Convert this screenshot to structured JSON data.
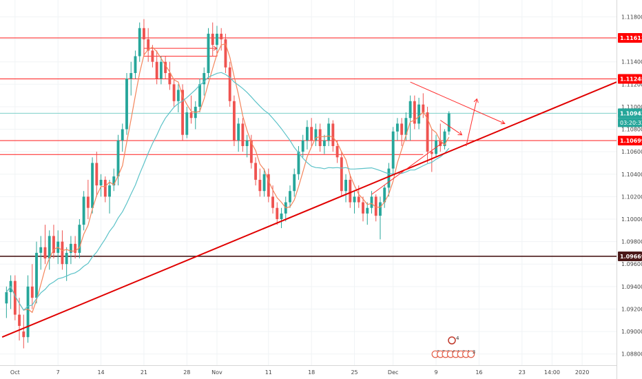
{
  "chart_data": {
    "type": "candlestick",
    "ylim": [
      1.087,
      1.1195
    ],
    "y_ticks": [
      1.118,
      1.116,
      1.114,
      1.112,
      1.11,
      1.108,
      1.106,
      1.104,
      1.102,
      1.1,
      1.098,
      1.096,
      1.094,
      1.092,
      1.09,
      1.088
    ],
    "y_tick_labels": [
      "1.11800",
      "1.11600",
      "1.11400",
      "1.11200",
      "1.11000",
      "1.10800",
      "1.10600",
      "1.10400",
      "1.10200",
      "1.10000",
      "1.09800",
      "1.09600",
      "1.09400",
      "1.09200",
      "1.09000",
      "1.08800"
    ],
    "x_ticks": [
      {
        "label": "Oct",
        "bar": 2
      },
      {
        "label": "7",
        "bar": 12
      },
      {
        "label": "14",
        "bar": 22
      },
      {
        "label": "21",
        "bar": 32
      },
      {
        "label": "28",
        "bar": 42
      },
      {
        "label": "Nov",
        "bar": 49
      },
      {
        "label": "11",
        "bar": 61
      },
      {
        "label": "18",
        "bar": 71
      },
      {
        "label": "25",
        "bar": 81
      },
      {
        "label": "Dec",
        "bar": 90
      },
      {
        "label": "9",
        "bar": 100
      },
      {
        "label": "16",
        "bar": 110
      },
      {
        "label": "23",
        "bar": 120
      },
      {
        "label": "14:00",
        "bar": 127
      },
      {
        "label": "2020",
        "bar": 134
      }
    ],
    "x_range": [
      -1.5,
      142
    ],
    "grid": true,
    "candles": [
      [
        1.0925,
        1.094,
        1.0912,
        1.0935
      ],
      [
        1.0935,
        1.095,
        1.092,
        1.0945
      ],
      [
        1.0945,
        1.095,
        1.091,
        1.0915
      ],
      [
        1.0915,
        1.093,
        1.0892,
        1.0905
      ],
      [
        1.09,
        1.0915,
        1.0885,
        1.0895
      ],
      [
        1.0895,
        1.095,
        1.089,
        1.094
      ],
      [
        1.094,
        1.096,
        1.092,
        1.093
      ],
      [
        1.093,
        1.098,
        1.0925,
        1.097
      ],
      [
        1.097,
        1.0985,
        1.0955,
        1.0975
      ],
      [
        1.0975,
        1.0995,
        1.096,
        1.0965
      ],
      [
        1.0965,
        1.099,
        1.0955,
        1.0985
      ],
      [
        1.0985,
        1.0995,
        1.0965,
        1.097
      ],
      [
        1.097,
        1.099,
        1.096,
        1.098
      ],
      [
        1.098,
        1.099,
        1.0955,
        1.096
      ],
      [
        1.096,
        1.0975,
        1.0945,
        1.097
      ],
      [
        1.097,
        1.0985,
        1.096,
        1.0978
      ],
      [
        1.0978,
        1.0985,
        1.0965,
        1.097
      ],
      [
        1.097,
        1.1,
        1.0965,
        1.0995
      ],
      [
        1.0995,
        1.1025,
        1.099,
        1.102
      ],
      [
        1.102,
        1.1035,
        1.1,
        1.101
      ],
      [
        1.101,
        1.1055,
        1.1005,
        1.105
      ],
      [
        1.105,
        1.106,
        1.102,
        1.103
      ],
      [
        1.103,
        1.104,
        1.102,
        1.1035
      ],
      [
        1.1035,
        1.1038,
        1.1015,
        1.102
      ],
      [
        1.102,
        1.1035,
        1.1005,
        1.103
      ],
      [
        1.103,
        1.1045,
        1.1025,
        1.1038
      ],
      [
        1.1038,
        1.1075,
        1.103,
        1.107
      ],
      [
        1.107,
        1.1085,
        1.106,
        1.108
      ],
      [
        1.108,
        1.113,
        1.1075,
        1.1125
      ],
      [
        1.1125,
        1.114,
        1.111,
        1.113
      ],
      [
        1.113,
        1.115,
        1.1125,
        1.1145
      ],
      [
        1.1145,
        1.1175,
        1.114,
        1.117
      ],
      [
        1.117,
        1.1178,
        1.115,
        1.116
      ],
      [
        1.116,
        1.117,
        1.114,
        1.115
      ],
      [
        1.115,
        1.1155,
        1.1135,
        1.114
      ],
      [
        1.114,
        1.115,
        1.112,
        1.1125
      ],
      [
        1.1125,
        1.1145,
        1.112,
        1.114
      ],
      [
        1.114,
        1.1145,
        1.1125,
        1.113
      ],
      [
        1.113,
        1.114,
        1.1115,
        1.112
      ],
      [
        1.112,
        1.1125,
        1.11,
        1.1105
      ],
      [
        1.1105,
        1.112,
        1.1095,
        1.1115
      ],
      [
        1.1115,
        1.112,
        1.107,
        1.1075
      ],
      [
        1.1075,
        1.11,
        1.1072,
        1.1095
      ],
      [
        1.1095,
        1.111,
        1.1085,
        1.109
      ],
      [
        1.109,
        1.1105,
        1.108,
        1.11
      ],
      [
        1.11,
        1.1125,
        1.1095,
        1.112
      ],
      [
        1.112,
        1.1135,
        1.111,
        1.113
      ],
      [
        1.113,
        1.117,
        1.1125,
        1.1165
      ],
      [
        1.1165,
        1.1175,
        1.1145,
        1.1155
      ],
      [
        1.1155,
        1.1172,
        1.115,
        1.1165
      ],
      [
        1.1165,
        1.117,
        1.115,
        1.116
      ],
      [
        1.116,
        1.1165,
        1.113,
        1.1135
      ],
      [
        1.1135,
        1.114,
        1.11,
        1.1105
      ],
      [
        1.1105,
        1.111,
        1.1065,
        1.107
      ],
      [
        1.107,
        1.109,
        1.106,
        1.1085
      ],
      [
        1.1085,
        1.109,
        1.106,
        1.1065
      ],
      [
        1.1065,
        1.1075,
        1.1055,
        1.107
      ],
      [
        1.107,
        1.1075,
        1.1045,
        1.105
      ],
      [
        1.105,
        1.1055,
        1.103,
        1.1035
      ],
      [
        1.1035,
        1.1045,
        1.102,
        1.1025
      ],
      [
        1.1025,
        1.1045,
        1.102,
        1.104
      ],
      [
        1.104,
        1.1045,
        1.1015,
        1.102
      ],
      [
        1.102,
        1.103,
        1.1005,
        1.101
      ],
      [
        1.101,
        1.1015,
        1.0995,
        1.1
      ],
      [
        1.1,
        1.101,
        1.0992,
        1.1005
      ],
      [
        1.1005,
        1.102,
        1.0998,
        1.1015
      ],
      [
        1.1015,
        1.103,
        1.101,
        1.1025
      ],
      [
        1.1025,
        1.1045,
        1.102,
        1.104
      ],
      [
        1.104,
        1.1065,
        1.1035,
        1.106
      ],
      [
        1.106,
        1.1075,
        1.1055,
        1.107
      ],
      [
        1.107,
        1.1088,
        1.1062,
        1.1082
      ],
      [
        1.1082,
        1.109,
        1.1065,
        1.107
      ],
      [
        1.107,
        1.1085,
        1.1065,
        1.108
      ],
      [
        1.108,
        1.1085,
        1.106,
        1.1065
      ],
      [
        1.1065,
        1.1075,
        1.1058,
        1.107
      ],
      [
        1.107,
        1.109,
        1.1065,
        1.1085
      ],
      [
        1.1085,
        1.1088,
        1.106,
        1.1065
      ],
      [
        1.1065,
        1.107,
        1.105,
        1.1055
      ],
      [
        1.1055,
        1.106,
        1.102,
        1.1025
      ],
      [
        1.1025,
        1.104,
        1.1015,
        1.1035
      ],
      [
        1.1035,
        1.104,
        1.101,
        1.1015
      ],
      [
        1.1015,
        1.1025,
        1.1005,
        1.102
      ],
      [
        1.102,
        1.103,
        1.101,
        1.1015
      ],
      [
        1.1015,
        1.102,
        1.0998,
        1.1005
      ],
      [
        1.1005,
        1.1015,
        1.0995,
        1.101
      ],
      [
        1.101,
        1.1025,
        1.1005,
        1.102
      ],
      [
        1.102,
        1.1022,
        1.0998,
        1.1003
      ],
      [
        1.1003,
        1.102,
        1.0982,
        1.1015
      ],
      [
        1.1015,
        1.103,
        1.101,
        1.1028
      ],
      [
        1.1028,
        1.105,
        1.102,
        1.1045
      ],
      [
        1.1045,
        1.1082,
        1.104,
        1.1078
      ],
      [
        1.1078,
        1.109,
        1.107,
        1.1085
      ],
      [
        1.1085,
        1.109,
        1.1065,
        1.1075
      ],
      [
        1.1075,
        1.1095,
        1.107,
        1.109
      ],
      [
        1.109,
        1.111,
        1.107,
        1.1105
      ],
      [
        1.1105,
        1.111,
        1.108,
        1.1085
      ],
      [
        1.1085,
        1.1108,
        1.108,
        1.1102
      ],
      [
        1.1102,
        1.1112,
        1.109,
        1.1095
      ],
      [
        1.1095,
        1.11,
        1.105,
        1.106
      ],
      [
        1.106,
        1.108,
        1.1042,
        1.1058
      ],
      [
        1.1058,
        1.1075,
        1.1055,
        1.107
      ],
      [
        1.107,
        1.1085,
        1.106,
        1.1065
      ],
      [
        1.1065,
        1.108,
        1.1062,
        1.1078
      ],
      [
        1.1078,
        1.1096,
        1.1075,
        1.1094
      ]
    ],
    "moving_averages": [
      {
        "color": "#f4845a",
        "period": 5
      },
      {
        "color": "#5bc2c8",
        "period": 20
      }
    ],
    "horizontal_levels": [
      {
        "price": 1.11613,
        "color": "#ff1a1a",
        "label": "1.11613",
        "tag_color": "#ff0000"
      },
      {
        "price": 1.11248,
        "color": "#ff1a1a",
        "label": "1.11248",
        "tag_color": "#ff0000"
      },
      {
        "price": 1.10942,
        "color": "#7ccfc8",
        "label": "1.10942",
        "tag_color": "#26a69a"
      },
      {
        "price": 1.10699,
        "color": "#ff1a1a",
        "label": "1.10699",
        "tag_color": "#ff0000"
      },
      {
        "price": 1.09669,
        "color": "#4a1818",
        "label": "1.09669",
        "tag_color": "#4a1818"
      }
    ],
    "partial_level": {
      "price": 1.10575,
      "color": "#ff1a1a"
    },
    "countdown_label": "03:20:32",
    "range_boxes": [
      {
        "x0": 32,
        "x1": 49,
        "top": 1.1152,
        "bottom": 1.1145
      }
    ],
    "trend_lines": [
      {
        "from": [
          -1,
          1.0895
        ],
        "to": [
          142,
          1.1122
        ],
        "color": "#e00000",
        "width": 2
      },
      {
        "from": [
          94,
          1.1122
        ],
        "to": [
          116,
          1.1085
        ],
        "color": "#ff2a2a",
        "width": 1
      },
      {
        "from": [
          85,
          1.1022
        ],
        "to": [
          101.5,
          1.1068
        ],
        "color": "#ff2a2a",
        "width": 1
      }
    ],
    "arrows": [
      {
        "from": [
          101,
          1.1088
        ],
        "to": [
          106,
          1.1075
        ],
        "color": "#ff2a2a"
      },
      {
        "from": [
          107,
          1.1065
        ],
        "to": [
          109.5,
          1.1107
        ],
        "color": "#ff2a2a"
      }
    ],
    "events": {
      "bar": 104,
      "top_marker": "4",
      "items": [
        "2",
        "7",
        "3",
        "4",
        "1",
        "2",
        "1",
        "3"
      ]
    }
  }
}
